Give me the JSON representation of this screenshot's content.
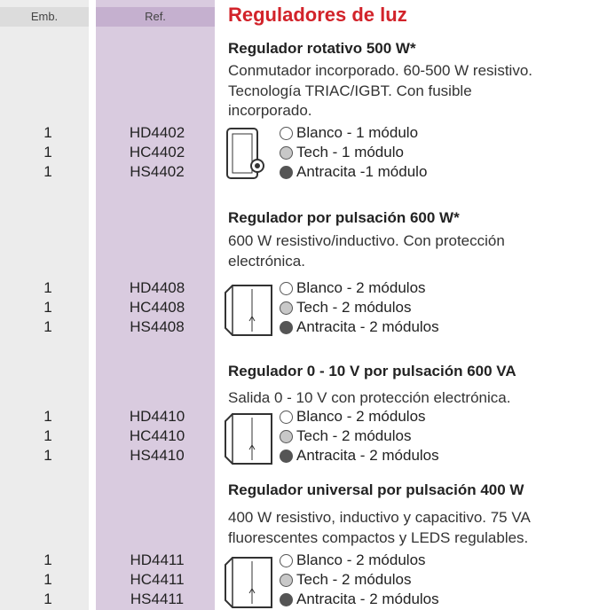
{
  "header": {
    "col_emb": "Emb.",
    "col_ref": "Ref.",
    "title": "Reguladores de luz"
  },
  "sections": [
    {
      "title": "Regulador rotativo 500 W*",
      "description": [
        "Conmutador incorporado. 60-500 W resistivo.",
        "Tecnología TRIAC/IGBT. Con fusible",
        "incorporado."
      ],
      "items": [
        {
          "emb": 1,
          "ref": "HD4402",
          "swatch": "#ffffff",
          "label": "Blanco - 1 módulo"
        },
        {
          "emb": 1,
          "ref": "HC4402",
          "swatch": "#c8c8c8",
          "label": "Tech - 1 módulo"
        },
        {
          "emb": 1,
          "ref": "HS4402",
          "swatch": "#555555",
          "label": "Antracita -1 módulo"
        }
      ]
    },
    {
      "title": "Regulador por pulsación 600 W*",
      "description": [
        "600 W resistivo/inductivo. Con protección",
        "electrónica."
      ],
      "items": [
        {
          "emb": 1,
          "ref": "HD4408",
          "swatch": "#ffffff",
          "label": "Blanco - 2 módulos"
        },
        {
          "emb": 1,
          "ref": "HC4408",
          "swatch": "#c8c8c8",
          "label": "Tech - 2 módulos"
        },
        {
          "emb": 1,
          "ref": "HS4408",
          "swatch": "#555555",
          "label": "Antracita - 2 módulos"
        }
      ]
    },
    {
      "title": "Regulador 0 - 10 V por pulsación 600 VA",
      "description": [
        "Salida 0 - 10 V con protección electrónica."
      ],
      "items": [
        {
          "emb": 1,
          "ref": "HD4410",
          "swatch": "#ffffff",
          "label": "Blanco - 2 módulos"
        },
        {
          "emb": 1,
          "ref": "HC4410",
          "swatch": "#c8c8c8",
          "label": "Tech - 2 módulos"
        },
        {
          "emb": 1,
          "ref": "HS4410",
          "swatch": "#555555",
          "label": "Antracita - 2 módulos"
        }
      ]
    },
    {
      "title": "Regulador universal por pulsación 400 W",
      "description": [
        "400 W resistivo, inductivo y capacitivo. 75 VA",
        "fluorescentes compactos y LEDS regulables."
      ],
      "items": [
        {
          "emb": 1,
          "ref": "HD4411",
          "swatch": "#ffffff",
          "label": "Blanco - 2 módulos"
        },
        {
          "emb": 1,
          "ref": "HC4411",
          "swatch": "#c8c8c8",
          "label": "Tech - 2 módulos"
        },
        {
          "emb": 1,
          "ref": "HS4411",
          "swatch": "#555555",
          "label": "Antracita - 2 módulos"
        }
      ]
    }
  ]
}
